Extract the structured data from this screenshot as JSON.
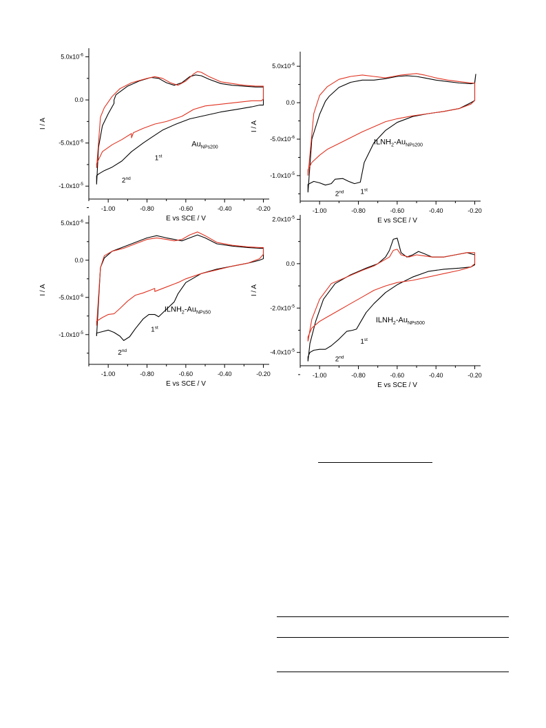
{
  "chart_data": [
    {
      "type": "line",
      "xlabel": "E vs SCE / V",
      "ylabel": "I / A",
      "xlim": [
        -1.1,
        -0.17
      ],
      "ylim": [
        -1.15e-05,
        6e-06
      ],
      "xticks": [
        "-1.00",
        "-0.80",
        "-0.60",
        "-0.40",
        "-0.20"
      ],
      "yticks": [
        {
          "base": "5.0x10",
          "exp": "-6"
        },
        {
          "base": "0.0",
          "exp": ""
        },
        {
          "base": "-5.0x10",
          "exp": "-6"
        },
        {
          "base": "-1.0x10",
          "exp": "-5"
        }
      ],
      "sample": {
        "pre": "Au",
        "sub": "NPs200",
        "mid": "",
        "post": ""
      },
      "annotations": [
        {
          "base": "1",
          "sup": "st",
          "x": -0.76,
          "y": -7e-06
        },
        {
          "base": "2",
          "sup": "nd",
          "x": -0.93,
          "y": -9.6e-06
        }
      ],
      "series": [
        {
          "color": "#000000",
          "x": [
            -1.06,
            -1.06,
            -1.05,
            -1.02,
            -0.98,
            -0.93,
            -0.88,
            -0.82,
            -0.78,
            -0.72,
            -0.65,
            -0.58,
            -0.5,
            -0.42,
            -0.34,
            -0.26,
            -0.22,
            -0.2,
            -0.2,
            -0.24,
            -0.3,
            -0.36,
            -0.42,
            -0.48,
            -0.52,
            -0.55,
            -0.58,
            -0.62,
            -0.66,
            -0.7,
            -0.74,
            -0.78,
            -0.84,
            -0.9,
            -0.96,
            -0.97,
            -0.97,
            -1.0,
            -1.03,
            -1.05,
            -1.06
          ],
          "y": [
            -9.8e-06,
            -8.8e-06,
            -8.6e-06,
            -8.2e-06,
            -7.8e-06,
            -7.1e-06,
            -6e-06,
            -5e-06,
            -4.4e-06,
            -3.5e-06,
            -2.8e-06,
            -2.2e-06,
            -1.8e-06,
            -1.4e-06,
            -1.1e-06,
            -8e-07,
            -6e-07,
            -6e-07,
            1.5e-06,
            1.5e-06,
            1.6e-06,
            1.7e-06,
            1.9e-06,
            2.4e-06,
            2.8e-06,
            2.9e-06,
            2.7e-06,
            2e-06,
            1.7e-06,
            2e-06,
            2.5e-06,
            2.6e-06,
            2.2e-06,
            1.6e-06,
            6e-07,
            0.0,
            -4e-07,
            -1.6e-06,
            -3e-06,
            -5.5e-06,
            -9.8e-06
          ]
        },
        {
          "color": "#e0301e",
          "x": [
            -1.06,
            -1.06,
            -1.03,
            -0.98,
            -0.93,
            -0.88,
            -0.88,
            -0.87,
            -0.82,
            -0.76,
            -0.7,
            -0.62,
            -0.56,
            -0.5,
            -0.42,
            -0.34,
            -0.26,
            -0.21,
            -0.2,
            -0.2,
            -0.24,
            -0.3,
            -0.36,
            -0.42,
            -0.48,
            -0.52,
            -0.54,
            -0.56,
            -0.6,
            -0.64,
            -0.68,
            -0.72,
            -0.76,
            -0.8,
            -0.88,
            -0.94,
            -0.98,
            -1.02,
            -1.04,
            -1.06
          ],
          "y": [
            -7.9e-06,
            -7.4e-06,
            -6e-06,
            -5.2e-06,
            -4.6e-06,
            -3.9e-06,
            -4.4e-06,
            -3.8e-06,
            -3.3e-06,
            -2.8e-06,
            -2.5e-06,
            -1.9e-06,
            -1.1e-06,
            -7e-07,
            -5e-07,
            -3e-07,
            -1e-07,
            -1e-07,
            1e-07,
            1.6e-06,
            1.6e-06,
            1.7e-06,
            1.9e-06,
            2.1e-06,
            2.7e-06,
            3.2e-06,
            3.3e-06,
            3e-06,
            2.2e-06,
            1.7e-06,
            2e-06,
            2.5e-06,
            2.7e-06,
            2.5e-06,
            2e-06,
            1.3e-06,
            4e-07,
            -9e-07,
            -2e-06,
            -7.9e-06
          ]
        }
      ]
    },
    {
      "type": "line",
      "xlabel": "E vs SCE / V",
      "ylabel": "I / A",
      "xlim": [
        -1.1,
        -0.17
      ],
      "ylim": [
        -1.35e-05,
        7e-06
      ],
      "xticks": [
        "-1.00",
        "-0.80",
        "-0.60",
        "-0.40",
        "-0.20"
      ],
      "yticks": [
        {
          "base": "5.0x10",
          "exp": "-6"
        },
        {
          "base": "0.0",
          "exp": ""
        },
        {
          "base": "-5.0x10",
          "exp": "-6"
        },
        {
          "base": "-1.0x10",
          "exp": "-5"
        }
      ],
      "sample": {
        "pre": "ILNH",
        "sub": "2",
        "mid": "-Au",
        "post": "NPs200"
      },
      "annotations": [
        {
          "base": "1",
          "sup": "st",
          "x": -0.79,
          "y": -1.25e-05
        },
        {
          "base": "2",
          "sup": "nd",
          "x": -0.92,
          "y": -1.28e-05
        }
      ],
      "series": [
        {
          "color": "#000000",
          "x": [
            -1.06,
            -1.06,
            -1.03,
            -1.0,
            -0.97,
            -0.94,
            -0.92,
            -0.88,
            -0.85,
            -0.82,
            -0.79,
            -0.77,
            -0.72,
            -0.66,
            -0.6,
            -0.52,
            -0.44,
            -0.36,
            -0.28,
            -0.22,
            -0.2,
            -0.2,
            -0.195,
            -0.2,
            -0.22,
            -0.28,
            -0.34,
            -0.4,
            -0.46,
            -0.5,
            -0.55,
            -0.6,
            -0.66,
            -0.72,
            -0.78,
            -0.84,
            -0.9,
            -0.95,
            -0.97,
            -1.0,
            -1.04,
            -1.06
          ],
          "y": [
            -1.23e-05,
            -1.12e-05,
            -1.08e-05,
            -1.1e-05,
            -1.13e-05,
            -1.11e-05,
            -1.05e-05,
            -1.04e-05,
            -1.08e-05,
            -1.11e-05,
            -1.09e-05,
            -8.2e-06,
            -5.5e-06,
            -3.8e-06,
            -2.7e-06,
            -1.9e-06,
            -1.5e-06,
            -1.2e-06,
            -8e-07,
            0.0,
            3e-07,
            2.8e-06,
            3.9e-06,
            2.7e-06,
            2.6e-06,
            2.7e-06,
            2.9e-06,
            3.1e-06,
            3.4e-06,
            3.6e-06,
            3.7e-06,
            3.6e-06,
            3.3e-06,
            3.1e-06,
            3.1e-06,
            2.8e-06,
            2.1e-06,
            9e-07,
            2e-07,
            -1.6e-06,
            -5e-06,
            -1.23e-05
          ]
        },
        {
          "color": "#e0301e",
          "x": [
            -1.06,
            -1.06,
            -1.04,
            -1.0,
            -0.96,
            -0.9,
            -0.84,
            -0.78,
            -0.72,
            -0.66,
            -0.6,
            -0.52,
            -0.44,
            -0.36,
            -0.28,
            -0.22,
            -0.2,
            -0.2,
            -0.22,
            -0.28,
            -0.34,
            -0.4,
            -0.46,
            -0.5,
            -0.54,
            -0.58,
            -0.62,
            -0.66,
            -0.72,
            -0.78,
            -0.84,
            -0.9,
            -0.96,
            -1.0,
            -1.03,
            -1.06
          ],
          "y": [
            -1e-05,
            -9.2e-06,
            -8.2e-06,
            -7.2e-06,
            -6.4e-06,
            -5.6e-06,
            -4.8e-06,
            -4e-06,
            -3.3e-06,
            -2.6e-06,
            -2.2e-06,
            -1.8e-06,
            -1.5e-06,
            -1.2e-06,
            -8e-07,
            -2e-07,
            3e-07,
            2.7e-06,
            2.7e-06,
            2.9e-06,
            3.1e-06,
            3.4e-06,
            3.8e-06,
            4e-06,
            3.9e-06,
            3.8e-06,
            3.6e-06,
            3.4e-06,
            3.6e-06,
            3.8e-06,
            3.6e-06,
            3.2e-06,
            2.2e-06,
            1e-06,
            -1.5e-06,
            -1e-05
          ]
        }
      ]
    },
    {
      "type": "line",
      "xlabel": "E vs SCE / V",
      "ylabel": "I / A",
      "xlim": [
        -1.1,
        -0.17
      ],
      "ylim": [
        -1.4e-05,
        6e-06
      ],
      "xticks": [
        "-1.00",
        "-0.80",
        "-0.60",
        "-0.40",
        "-0.20"
      ],
      "yticks": [
        {
          "base": "5.0x10",
          "exp": "-6"
        },
        {
          "base": "0.0",
          "exp": ""
        },
        {
          "base": "-5.0x10",
          "exp": "-6"
        },
        {
          "base": "-1.0x10",
          "exp": "-5"
        }
      ],
      "sample": {
        "pre": "ILNH",
        "sub": "2",
        "mid": "-Au",
        "post": "NPs50"
      },
      "annotations": [
        {
          "base": "1",
          "sup": "st",
          "x": -0.78,
          "y": -9.6e-06
        },
        {
          "base": "2",
          "sup": "nd",
          "x": -0.95,
          "y": -1.27e-05
        }
      ],
      "series": [
        {
          "color": "#000000",
          "x": [
            -1.06,
            -1.06,
            -1.03,
            -1.0,
            -0.97,
            -0.94,
            -0.92,
            -0.89,
            -0.86,
            -0.82,
            -0.79,
            -0.76,
            -0.74,
            -0.7,
            -0.66,
            -0.64,
            -0.6,
            -0.52,
            -0.44,
            -0.36,
            -0.28,
            -0.22,
            -0.2,
            -0.2,
            -0.22,
            -0.28,
            -0.36,
            -0.44,
            -0.5,
            -0.54,
            -0.58,
            -0.62,
            -0.66,
            -0.7,
            -0.75,
            -0.8,
            -0.86,
            -0.92,
            -0.98,
            -1.02,
            -1.04,
            -1.06
          ],
          "y": [
            -1.02e-05,
            -9.8e-06,
            -9.6e-06,
            -9.4e-06,
            -9.7e-06,
            -1.02e-05,
            -1.08e-05,
            -1.03e-05,
            -9.2e-06,
            -7.9e-06,
            -7.3e-06,
            -7.3e-06,
            -7.6e-06,
            -6.6e-06,
            -5.6e-06,
            -4.5e-06,
            -3e-06,
            -1.8e-06,
            -1.2e-06,
            -8e-07,
            -4e-07,
            0.0,
            2e-07,
            1.6e-06,
            1.6e-06,
            1.7e-06,
            1.9e-06,
            2.2e-06,
            3e-06,
            3.4e-06,
            3e-06,
            2.6e-06,
            2.8e-06,
            3e-06,
            3.3e-06,
            3e-06,
            2.4e-06,
            1.8e-06,
            1.2e-06,
            3e-07,
            -1e-06,
            -1.02e-05
          ]
        },
        {
          "color": "#e0301e",
          "x": [
            -1.06,
            -1.06,
            -1.03,
            -1.0,
            -0.97,
            -0.94,
            -0.9,
            -0.86,
            -0.82,
            -0.78,
            -0.76,
            -0.76,
            -0.7,
            -0.64,
            -0.6,
            -0.52,
            -0.44,
            -0.36,
            -0.28,
            -0.22,
            -0.2,
            -0.2,
            -0.22,
            -0.28,
            -0.36,
            -0.44,
            -0.5,
            -0.54,
            -0.58,
            -0.62,
            -0.66,
            -0.7,
            -0.75,
            -0.8,
            -0.86,
            -0.92,
            -0.98,
            -1.02,
            -1.04,
            -1.06
          ],
          "y": [
            -8.8e-06,
            -8.2e-06,
            -7.7e-06,
            -7.3e-06,
            -7.2e-06,
            -6.5e-06,
            -5.5e-06,
            -4.7e-06,
            -4.4e-06,
            -4e-06,
            -3.8e-06,
            -4.2e-06,
            -3.6e-06,
            -3e-06,
            -2.5e-06,
            -1.8e-06,
            -1.3e-06,
            -8e-07,
            -4e-07,
            2e-07,
            8e-07,
            1.7e-06,
            1.7e-06,
            1.8e-06,
            2e-06,
            2.4e-06,
            3.3e-06,
            3.8e-06,
            3.4e-06,
            2.8e-06,
            2.6e-06,
            2.8e-06,
            3e-06,
            2.8e-06,
            2.2e-06,
            1.6e-06,
            1.2e-06,
            6e-07,
            -1e-06,
            -8.8e-06
          ]
        }
      ]
    },
    {
      "type": "line",
      "xlabel": "E vs SCE / V",
      "ylabel": "I / A",
      "xlim": [
        -1.1,
        -0.17
      ],
      "ylim": [
        -4.6e-05,
        2.2e-05
      ],
      "xticks": [
        "-1.00",
        "-0.80",
        "-0.60",
        "-0.40",
        "-0.20"
      ],
      "yticks": [
        {
          "base": "2.0x10",
          "exp": "-5"
        },
        {
          "base": "0.0",
          "exp": ""
        },
        {
          "base": "-2.0x10",
          "exp": "-5"
        },
        {
          "base": "-4.0x10",
          "exp": "-5"
        }
      ],
      "sample": {
        "pre": "ILNH",
        "sub": "2",
        "mid": "-Au",
        "post": "NPs500"
      },
      "annotations": [
        {
          "base": "1",
          "sup": "st",
          "x": -0.79,
          "y": -3.6e-05
        },
        {
          "base": "2",
          "sup": "nd",
          "x": -0.92,
          "y": -4.4e-05
        }
      ],
      "series": [
        {
          "color": "#000000",
          "x": [
            -1.06,
            -1.06,
            -1.05,
            -1.03,
            -1.0,
            -0.97,
            -0.94,
            -0.9,
            -0.86,
            -0.83,
            -0.81,
            -0.79,
            -0.76,
            -0.72,
            -0.66,
            -0.6,
            -0.52,
            -0.44,
            -0.36,
            -0.28,
            -0.22,
            -0.2,
            -0.2,
            -0.24,
            -0.3,
            -0.36,
            -0.42,
            -0.46,
            -0.49,
            -0.52,
            -0.55,
            -0.58,
            -0.6,
            -0.62,
            -0.64,
            -0.66,
            -0.7,
            -0.76,
            -0.84,
            -0.92,
            -0.98,
            -1.02,
            -1.05,
            -1.06
          ],
          "y": [
            -4.4e-05,
            -4.2e-05,
            -4e-05,
            -3.9e-05,
            -3.86e-05,
            -3.86e-05,
            -3.7e-05,
            -3.4e-05,
            -3.05e-05,
            -3e-05,
            -2.95e-05,
            -2.65e-05,
            -2.2e-05,
            -1.8e-05,
            -1.3e-05,
            -9.5e-06,
            -6e-06,
            -3.5e-06,
            -2.5e-06,
            -2e-06,
            -1.5e-06,
            -5e-07,
            4e-06,
            5e-06,
            4e-06,
            3e-06,
            3e-06,
            4.5e-06,
            5.5e-06,
            4e-06,
            3e-06,
            5e-06,
            1.15e-05,
            1.1e-05,
            6e-06,
            3e-06,
            0.0,
            -2e-06,
            -5e-06,
            -9e-06,
            -1.6e-05,
            -2.6e-05,
            -3.6e-05,
            -4.4e-05
          ]
        },
        {
          "color": "#e0301e",
          "x": [
            -1.06,
            -1.06,
            -1.04,
            -1.0,
            -0.96,
            -0.9,
            -0.84,
            -0.78,
            -0.72,
            -0.66,
            -0.6,
            -0.52,
            -0.44,
            -0.36,
            -0.28,
            -0.22,
            -0.2,
            -0.2,
            -0.24,
            -0.3,
            -0.36,
            -0.42,
            -0.46,
            -0.5,
            -0.54,
            -0.58,
            -0.6,
            -0.62,
            -0.64,
            -0.68,
            -0.72,
            -0.78,
            -0.86,
            -0.94,
            -1.0,
            -1.04,
            -1.06
          ],
          "y": [
            -3.5e-05,
            -3.3e-05,
            -2.9e-05,
            -2.6e-05,
            -2.4e-05,
            -2.1e-05,
            -1.8e-05,
            -1.5e-05,
            -1.2e-05,
            -1e-05,
            -8.5e-06,
            -7.5e-06,
            -6e-06,
            -4.5e-06,
            -3e-06,
            -1.5e-06,
            0.0,
            5e-06,
            5e-06,
            4e-06,
            3e-06,
            3e-06,
            3.5e-06,
            4e-06,
            3e-06,
            4e-06,
            6.5e-06,
            6e-06,
            3e-06,
            1e-06,
            -1e-06,
            -3e-06,
            -6e-06,
            -9e-06,
            -1.6e-05,
            -2.5e-05,
            -3.5e-05
          ]
        }
      ]
    }
  ]
}
